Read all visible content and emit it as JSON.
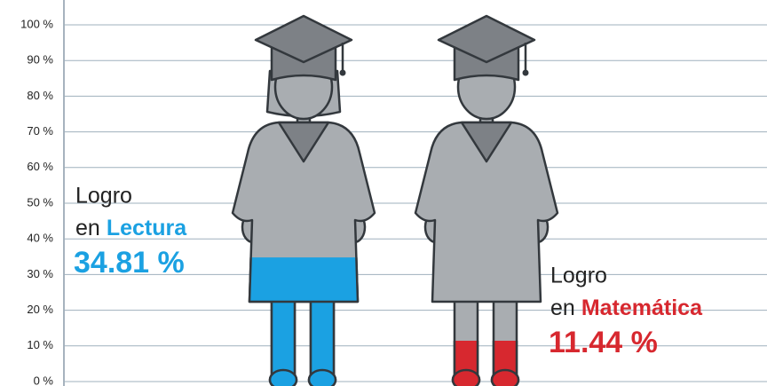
{
  "chart_data": {
    "type": "figure-fill",
    "ylim": [
      0,
      100
    ],
    "yticks": [
      {
        "value": 0,
        "label": "0 %"
      },
      {
        "value": 10,
        "label": "10 %"
      },
      {
        "value": 20,
        "label": "20 %"
      },
      {
        "value": 30,
        "label": "30 %"
      },
      {
        "value": 40,
        "label": "40 %"
      },
      {
        "value": 50,
        "label": "50 %"
      },
      {
        "value": 60,
        "label": "60 %"
      },
      {
        "value": 70,
        "label": "70 %"
      },
      {
        "value": 80,
        "label": "80 %"
      },
      {
        "value": 90,
        "label": "90 %"
      },
      {
        "value": 100,
        "label": "100 %"
      }
    ],
    "grid": true,
    "label_lines": [
      "Logro",
      "en"
    ],
    "categories": [
      "Lectura",
      "Matemática"
    ],
    "values": [
      34.81,
      11.44
    ],
    "value_labels": [
      "34.81 %",
      "11.44 %"
    ],
    "colors": [
      "#1ba1e2",
      "#d7282f"
    ]
  }
}
